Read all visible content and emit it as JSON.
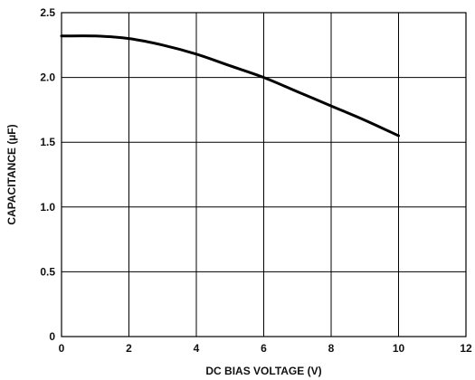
{
  "chart_data": {
    "type": "line",
    "title": "",
    "xlabel": "DC BIAS VOLTAGE (V)",
    "ylabel": "CAPACITANCE (µF)",
    "xlim": [
      0,
      12
    ],
    "ylim": [
      0,
      2.5
    ],
    "x_ticks": [
      "0",
      "2",
      "4",
      "6",
      "8",
      "10",
      "12"
    ],
    "y_ticks": [
      "0",
      "0.5",
      "1.0",
      "1.5",
      "2.0",
      "2.5"
    ],
    "grid": true,
    "legend": "none",
    "series": [
      {
        "color": "#000000",
        "x": [
          0,
          1,
          2,
          3,
          4,
          5,
          6,
          7,
          8,
          9,
          10
        ],
        "y": [
          2.32,
          2.32,
          2.3,
          2.25,
          2.18,
          2.09,
          2.0,
          1.89,
          1.78,
          1.67,
          1.55
        ]
      }
    ]
  }
}
